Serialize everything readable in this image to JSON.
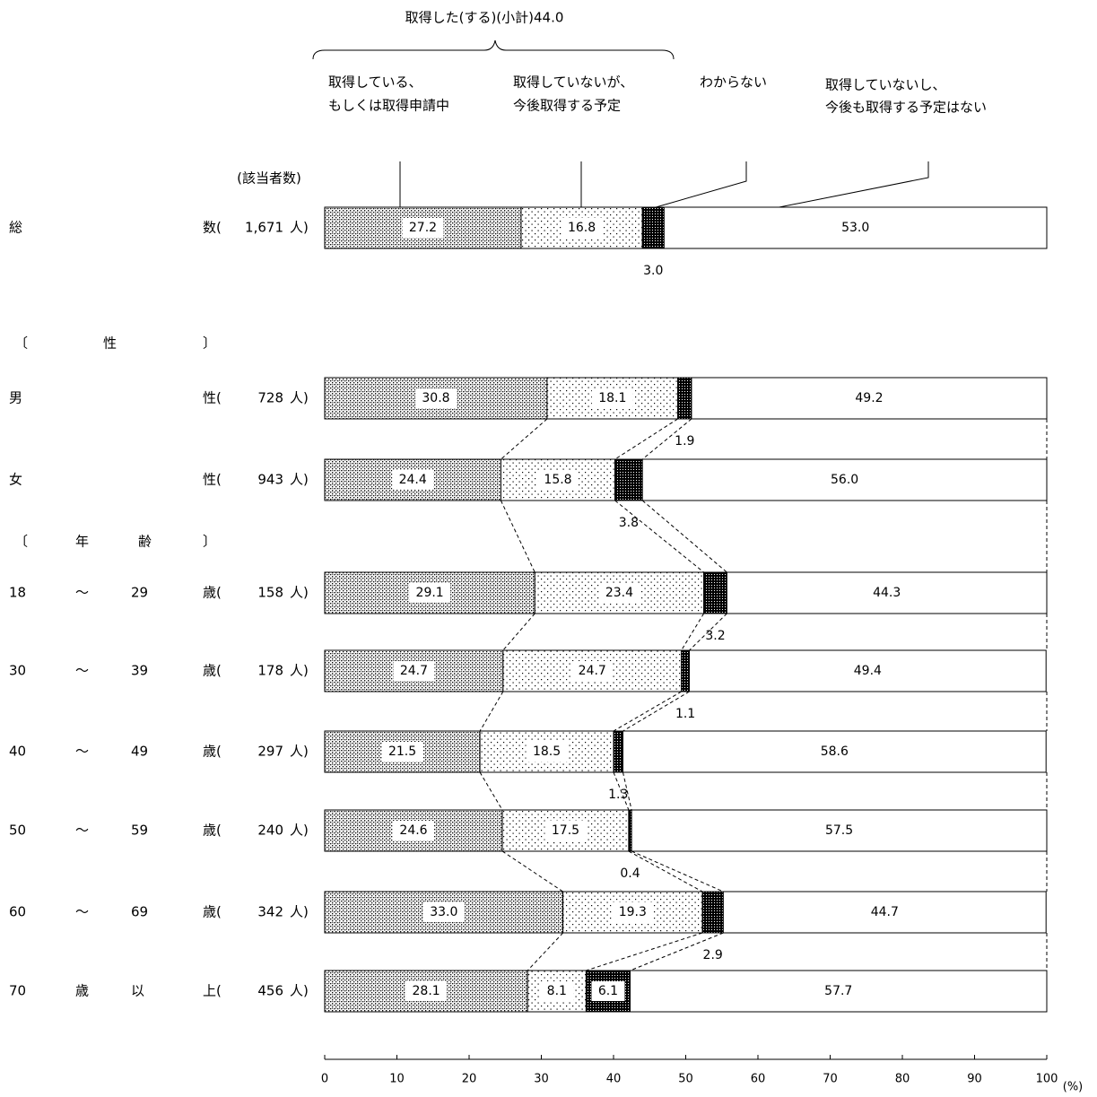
{
  "chart_data": {
    "type": "bar",
    "orientation": "horizontal-stacked",
    "subtotal_label": "取得した(する)(小計)44.0",
    "count_header": "(該当者数)",
    "legend": [
      {
        "label_line1": "取得している、",
        "label_line2": "もしくは取得申請中",
        "pattern": "dense-cross"
      },
      {
        "label_line1": "取得していないが、",
        "label_line2": "今後取得する予定",
        "pattern": "sparse-dots"
      },
      {
        "label_line1": "わからない",
        "label_line2": "",
        "pattern": "dark-check"
      },
      {
        "label_line1": "取得していないし、",
        "label_line2": "今後も取得する予定はない",
        "pattern": "blank"
      }
    ],
    "sections": [
      {
        "label_chars": [
          "〔",
          "性",
          "〕"
        ]
      },
      {
        "label_chars": [
          "〔",
          "年",
          "齢",
          "〕"
        ]
      }
    ],
    "rows": [
      {
        "cols": [
          "総",
          "",
          "",
          "数("
        ],
        "count": "1,671",
        "unit": "人)",
        "values": [
          27.2,
          16.8,
          3.0,
          53.0
        ],
        "labels": [
          "27.2",
          "16.8",
          "3.0",
          "53.0"
        ]
      },
      {
        "cols": [
          "男",
          "",
          "",
          "性("
        ],
        "count": "728",
        "unit": "人)",
        "values": [
          30.8,
          18.1,
          1.9,
          49.2
        ],
        "labels": [
          "30.8",
          "18.1",
          "1.9",
          "49.2"
        ]
      },
      {
        "cols": [
          "女",
          "",
          "",
          "性("
        ],
        "count": "943",
        "unit": "人)",
        "values": [
          24.4,
          15.8,
          3.8,
          56.0
        ],
        "labels": [
          "24.4",
          "15.8",
          "3.8",
          "56.0"
        ]
      },
      {
        "cols": [
          "18",
          "〜",
          "29",
          "歳("
        ],
        "count": "158",
        "unit": "人)",
        "values": [
          29.1,
          23.4,
          3.2,
          44.3
        ],
        "labels": [
          "29.1",
          "23.4",
          "3.2",
          "44.3"
        ]
      },
      {
        "cols": [
          "30",
          "〜",
          "39",
          "歳("
        ],
        "count": "178",
        "unit": "人)",
        "values": [
          24.7,
          24.7,
          1.1,
          49.4
        ],
        "labels": [
          "24.7",
          "24.7",
          "1.1",
          "49.4"
        ]
      },
      {
        "cols": [
          "40",
          "〜",
          "49",
          "歳("
        ],
        "count": "297",
        "unit": "人)",
        "values": [
          21.5,
          18.5,
          1.3,
          58.6
        ],
        "labels": [
          "21.5",
          "18.5",
          "1.3",
          "58.6"
        ]
      },
      {
        "cols": [
          "50",
          "〜",
          "59",
          "歳("
        ],
        "count": "240",
        "unit": "人)",
        "values": [
          24.6,
          17.5,
          0.4,
          57.5
        ],
        "labels": [
          "24.6",
          "17.5",
          "0.4",
          "57.5"
        ]
      },
      {
        "cols": [
          "60",
          "〜",
          "69",
          "歳("
        ],
        "count": "342",
        "unit": "人)",
        "values": [
          33.0,
          19.3,
          2.9,
          44.7
        ],
        "labels": [
          "33.0",
          "19.3",
          "2.9",
          "44.7"
        ]
      },
      {
        "cols": [
          "70",
          "歳",
          "以",
          "上("
        ],
        "count": "456",
        "unit": "人)",
        "values": [
          28.1,
          8.1,
          6.1,
          57.7
        ],
        "labels": [
          "28.1",
          "8.1",
          "6.1",
          "57.7"
        ]
      }
    ],
    "x_axis": {
      "min": 0,
      "max": 100,
      "ticks": [
        0,
        10,
        20,
        30,
        40,
        50,
        60,
        70,
        80,
        90,
        100
      ],
      "unit_label": "(%)"
    },
    "legend_placement": "top",
    "grid": false
  }
}
